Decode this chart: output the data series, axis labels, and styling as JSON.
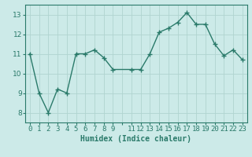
{
  "x": [
    0,
    1,
    2,
    3,
    4,
    5,
    6,
    7,
    8,
    9,
    11,
    12,
    13,
    14,
    15,
    16,
    17,
    18,
    19,
    20,
    21,
    22,
    23
  ],
  "y": [
    11.0,
    9.0,
    8.0,
    9.2,
    9.0,
    11.0,
    11.0,
    11.2,
    10.8,
    10.2,
    10.2,
    10.2,
    11.0,
    12.1,
    12.3,
    12.6,
    13.1,
    12.5,
    12.5,
    11.5,
    10.9,
    11.2,
    10.7
  ],
  "line_color": "#2a7a6a",
  "marker": "+",
  "markersize": 4,
  "linewidth": 1.0,
  "background_color": "#cceae8",
  "grid_color": "#b0d4d0",
  "xlabel": "Humidex (Indice chaleur)",
  "xlim": [
    -0.5,
    23.5
  ],
  "ylim": [
    7.5,
    13.5
  ],
  "yticks": [
    8,
    9,
    10,
    11,
    12,
    13
  ],
  "xtick_labels": [
    "0",
    "1",
    "2",
    "3",
    "4",
    "5",
    "6",
    "7",
    "8",
    "9",
    "",
    "11",
    "12",
    "13",
    "14",
    "15",
    "16",
    "17",
    "18",
    "19",
    "20",
    "21",
    "22",
    "23"
  ],
  "xtick_positions": [
    0,
    1,
    2,
    3,
    4,
    5,
    6,
    7,
    8,
    9,
    10,
    11,
    12,
    13,
    14,
    15,
    16,
    17,
    18,
    19,
    20,
    21,
    22,
    23
  ],
  "xlabel_fontsize": 7,
  "tick_fontsize": 6.5,
  "tick_color": "#2a7a6a",
  "axis_color": "#2a7a6a"
}
